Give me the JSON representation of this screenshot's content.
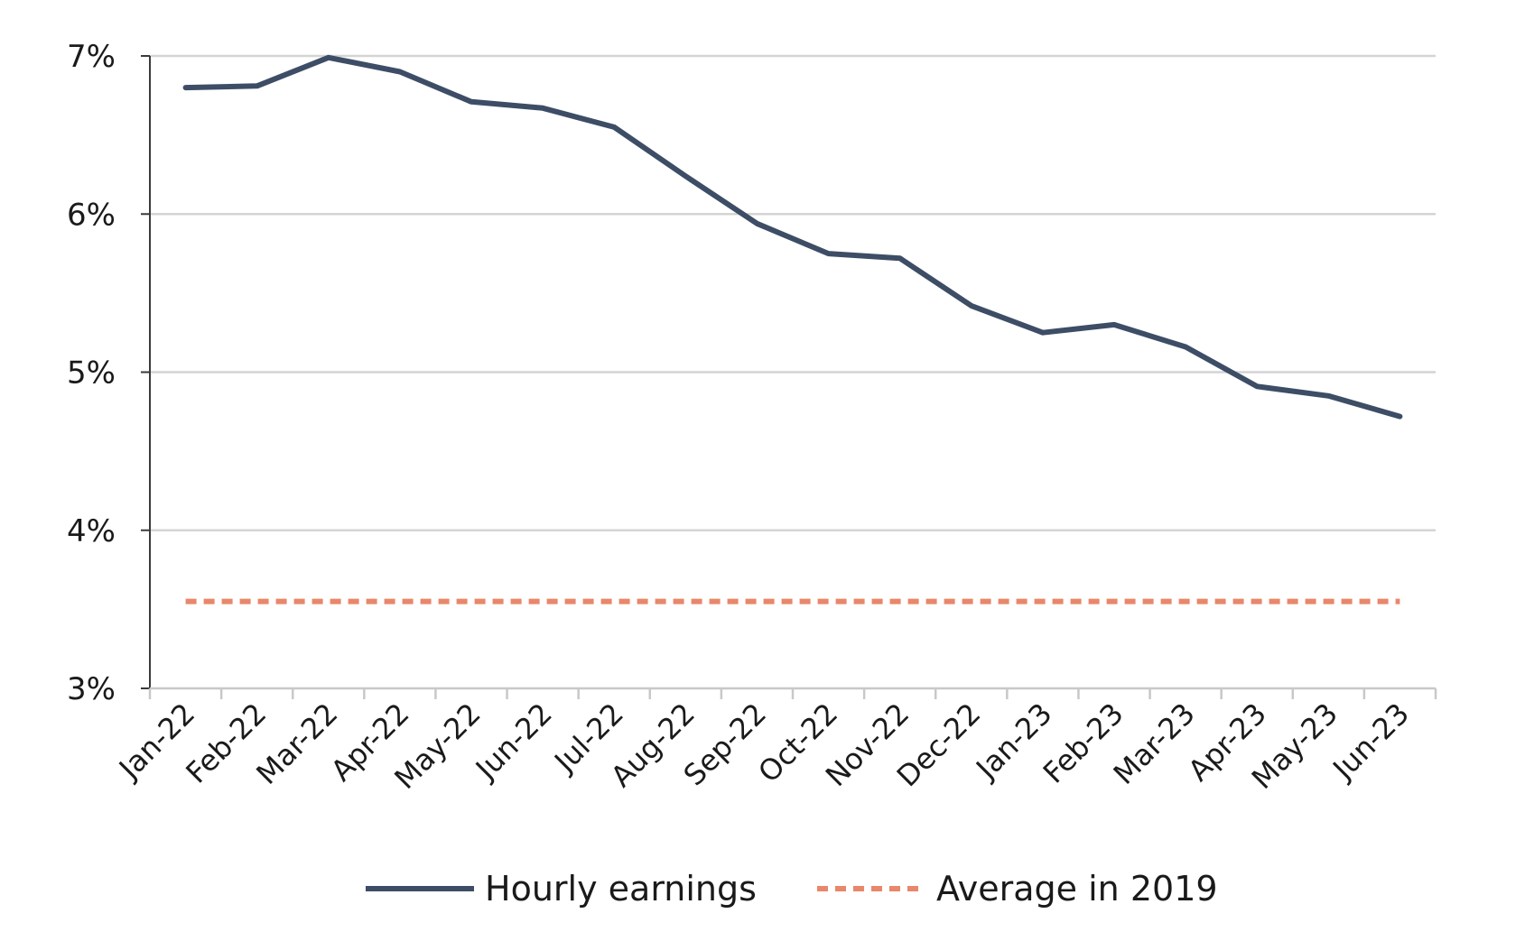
{
  "chart_data": {
    "type": "line",
    "title": "",
    "xlabel": "",
    "ylabel": "",
    "categories": [
      "Jan-22",
      "Feb-22",
      "Mar-22",
      "Apr-22",
      "May-22",
      "Jun-22",
      "Jul-22",
      "Aug-22",
      "Sep-22",
      "Oct-22",
      "Nov-22",
      "Dec-22",
      "Jan-23",
      "Feb-23",
      "Mar-23",
      "Apr-23",
      "May-23",
      "Jun-23"
    ],
    "ylim": [
      3,
      7
    ],
    "yticks": [
      3,
      4,
      5,
      6,
      7
    ],
    "ytick_labels": [
      "3%",
      "4%",
      "5%",
      "6%",
      "7%"
    ],
    "grid": true,
    "legend_position": "bottom",
    "series": [
      {
        "name": "Hourly earnings",
        "style": "solid",
        "color": "#3d4d66",
        "values": [
          6.8,
          6.81,
          6.99,
          6.9,
          6.71,
          6.67,
          6.55,
          6.24,
          5.94,
          5.75,
          5.72,
          5.42,
          5.25,
          5.3,
          5.16,
          4.91,
          4.85,
          4.72
        ]
      },
      {
        "name": "Average in 2019",
        "style": "dashed",
        "color": "#e8876a",
        "values": [
          3.55,
          3.55,
          3.55,
          3.55,
          3.55,
          3.55,
          3.55,
          3.55,
          3.55,
          3.55,
          3.55,
          3.55,
          3.55,
          3.55,
          3.55,
          3.55,
          3.55,
          3.55
        ]
      }
    ]
  }
}
